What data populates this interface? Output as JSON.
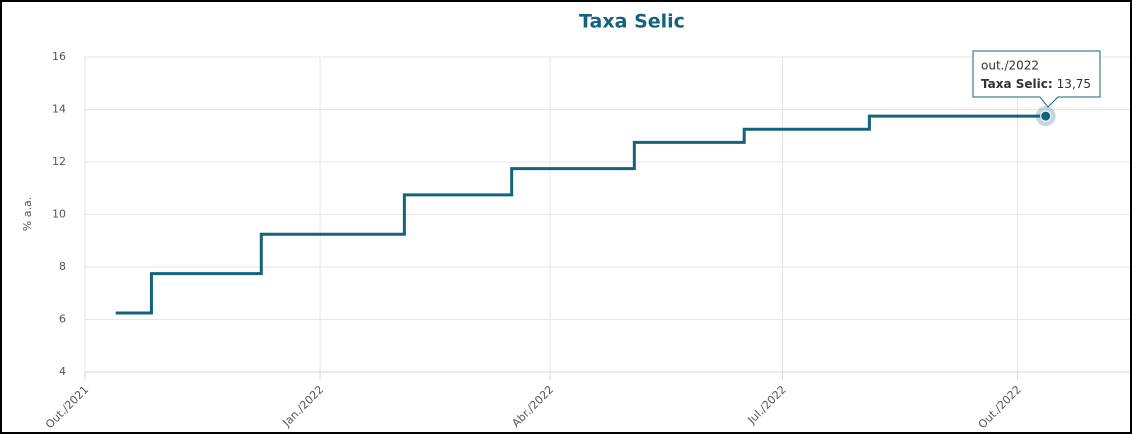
{
  "chart_data": {
    "type": "step-line",
    "title": "Taxa Selic",
    "y_label": "% a.a.",
    "xlim": [
      "2021-10-01",
      "2022-11-14"
    ],
    "xticks": [
      {
        "value": "2021-10-01",
        "label": "Out./2021"
      },
      {
        "value": "2022-01-01",
        "label": "Jan./2022"
      },
      {
        "value": "2022-04-01",
        "label": "Abr./2022"
      },
      {
        "value": "2022-07-01",
        "label": "Jul./2022"
      },
      {
        "value": "2022-10-01",
        "label": "Out./2022"
      }
    ],
    "ylim": [
      4,
      16
    ],
    "yticks": [
      4,
      6,
      8,
      10,
      12,
      14,
      16
    ],
    "grid": true,
    "x": [
      "2021-10-13",
      "2021-10-27",
      "2021-12-09",
      "2022-02-03",
      "2022-03-17",
      "2022-05-04",
      "2022-06-16",
      "2022-08-04",
      "2022-10-12"
    ],
    "series": [
      {
        "name": "Taxa Selic",
        "color": "#14637e",
        "values": [
          6.25,
          7.75,
          9.25,
          10.75,
          11.75,
          12.75,
          13.25,
          13.75,
          13.75
        ]
      }
    ],
    "tooltip": {
      "title": "out./2022",
      "label": "Taxa Selic:",
      "value": "13,75"
    }
  }
}
